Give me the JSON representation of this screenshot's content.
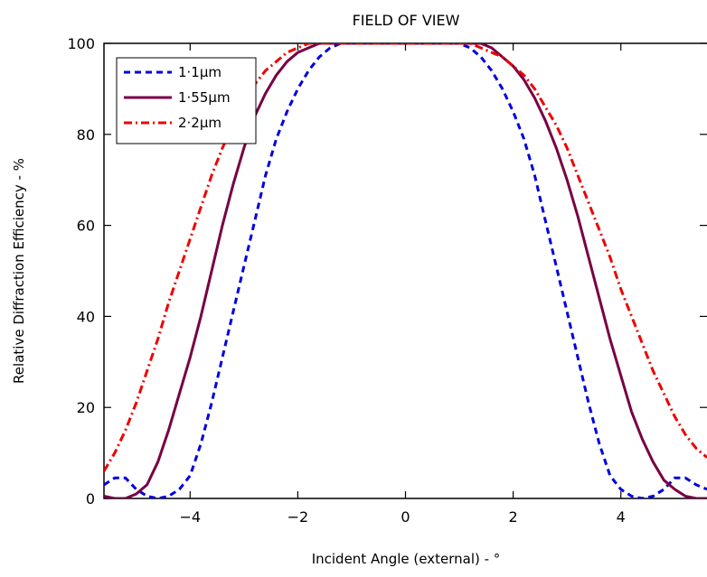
{
  "chart_data": {
    "type": "line",
    "title": "FIELD OF VIEW",
    "xlabel": "Incident Angle (external) - °",
    "ylabel": "Relative Diffraction Efficiency - %",
    "xlim": [
      -5.6,
      5.6
    ],
    "ylim": [
      0,
      100
    ],
    "xticks": [
      -4,
      -2,
      0,
      2,
      4
    ],
    "xtick_labels": [
      "−4",
      "−2",
      "0",
      "2",
      "4"
    ],
    "yticks": [
      0,
      20,
      40,
      60,
      80,
      100
    ],
    "ytick_labels": [
      "0",
      "20",
      "40",
      "60",
      "80",
      "100"
    ],
    "grid": false,
    "legend_position": "top-left",
    "series": [
      {
        "name": "1·1µm",
        "color": "#0000dd",
        "style": "dashed",
        "x": [
          -5.6,
          -5.4,
          -5.2,
          -5.0,
          -4.8,
          -4.6,
          -4.4,
          -4.2,
          -4.0,
          -3.8,
          -3.6,
          -3.4,
          -3.2,
          -3.0,
          -2.8,
          -2.6,
          -2.4,
          -2.2,
          -2.0,
          -1.8,
          -1.6,
          -1.4,
          -1.2,
          -1.0,
          -0.8,
          -0.6,
          0,
          0.6,
          0.8,
          1.0,
          1.2,
          1.4,
          1.6,
          1.8,
          2.0,
          2.2,
          2.4,
          2.6,
          2.8,
          3.0,
          3.2,
          3.4,
          3.6,
          3.8,
          4.0,
          4.2,
          4.4,
          4.6,
          4.8,
          5.0,
          5.2,
          5.4,
          5.6
        ],
        "y": [
          3,
          4.5,
          4.5,
          2,
          0.5,
          0,
          0.5,
          2,
          5,
          12,
          21,
          31,
          41,
          51,
          61,
          71,
          79,
          85,
          90,
          94,
          97,
          99,
          100,
          100,
          100,
          100,
          100,
          100,
          100,
          100,
          99,
          97,
          94,
          90,
          85,
          79,
          71,
          61,
          51,
          41,
          31,
          21,
          12,
          5,
          2,
          0.5,
          0,
          0.5,
          2,
          4.5,
          4.5,
          3,
          2
        ]
      },
      {
        "name": "1·55µm",
        "color": "#770044",
        "style": "solid",
        "x": [
          -5.6,
          -5.4,
          -5.2,
          -5.0,
          -4.8,
          -4.6,
          -4.4,
          -4.2,
          -4.0,
          -3.8,
          -3.6,
          -3.4,
          -3.2,
          -3.0,
          -2.8,
          -2.6,
          -2.4,
          -2.2,
          -2.0,
          -1.8,
          -1.6,
          -1.4,
          -1.2,
          -1.0,
          -0.8,
          0,
          0.8,
          1.0,
          1.2,
          1.4,
          1.6,
          1.8,
          2.0,
          2.2,
          2.4,
          2.6,
          2.8,
          3.0,
          3.2,
          3.4,
          3.6,
          3.8,
          4.0,
          4.2,
          4.4,
          4.6,
          4.8,
          5.0,
          5.2,
          5.4,
          5.6
        ],
        "y": [
          0.5,
          0,
          0,
          1,
          3,
          8,
          15,
          23,
          31,
          40,
          50,
          60,
          69,
          77,
          84,
          89,
          93,
          96,
          98,
          99,
          100,
          100,
          100,
          100,
          100,
          100,
          100,
          100,
          100,
          100,
          99,
          97,
          95,
          92,
          88,
          83,
          77,
          70,
          62,
          53,
          44,
          35,
          27,
          19,
          13,
          8,
          4,
          2,
          0.5,
          0,
          0
        ]
      },
      {
        "name": "2·2µm",
        "color": "#ee0000",
        "style": "dashdot",
        "x": [
          -5.6,
          -5.4,
          -5.2,
          -5.0,
          -4.8,
          -4.6,
          -4.4,
          -4.2,
          -4.0,
          -3.8,
          -3.6,
          -3.4,
          -3.2,
          -3.0,
          -2.8,
          -2.6,
          -2.4,
          -2.2,
          -2.0,
          -1.8,
          -1.6,
          -1.4,
          -1.2,
          -1.0,
          0,
          1.0,
          1.2,
          1.4,
          1.6,
          1.8,
          2.0,
          2.2,
          2.4,
          2.6,
          2.8,
          3.0,
          3.2,
          3.4,
          3.6,
          3.8,
          4.0,
          4.2,
          4.4,
          4.6,
          4.8,
          5.0,
          5.2,
          5.4,
          5.6
        ],
        "y": [
          6,
          10,
          15,
          21,
          28,
          35,
          43,
          50,
          57,
          64,
          71,
          77,
          82,
          87,
          91,
          94,
          96,
          98,
          99,
          100,
          100,
          100,
          100,
          100,
          100,
          100,
          100,
          99,
          98,
          97,
          95,
          93,
          90,
          86,
          82,
          77,
          71,
          65,
          59,
          53,
          46,
          40,
          34,
          28,
          23,
          18,
          14,
          11,
          9
        ]
      }
    ]
  }
}
